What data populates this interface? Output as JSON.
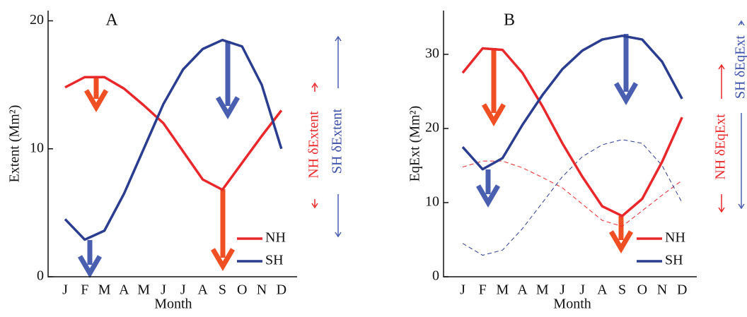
{
  "chart_data": [
    {
      "type": "line",
      "title": "A",
      "x_label": "Month",
      "y_label": "Extent (Mm²)",
      "categories": [
        "J",
        "F",
        "M",
        "A",
        "M",
        "J",
        "J",
        "A",
        "S",
        "O",
        "N",
        "D"
      ],
      "series": [
        {
          "name": "NH",
          "color": "#e8282b",
          "values": [
            14.8,
            15.6,
            15.6,
            14.7,
            13.4,
            12.0,
            9.8,
            7.6,
            6.8,
            8.9,
            11.0,
            13.0
          ]
        },
        {
          "name": "SH",
          "color": "#2b3d8f",
          "values": [
            4.5,
            2.9,
            3.6,
            6.5,
            10.0,
            13.5,
            16.2,
            17.8,
            18.5,
            18.0,
            15.0,
            10.0
          ]
        }
      ],
      "ylim": [
        0,
        20.8
      ],
      "yticks": [
        0,
        10,
        20
      ],
      "annotations": [
        "NH δExtent",
        "SH δExtent"
      ]
    },
    {
      "type": "line",
      "title": "B",
      "x_label": "Month",
      "y_label": "EqExt (Mm²)",
      "categories": [
        "J",
        "F",
        "M",
        "A",
        "M",
        "J",
        "J",
        "A",
        "S",
        "O",
        "N",
        "D"
      ],
      "series": [
        {
          "name": "NH",
          "color": "#e8282b",
          "values": [
            27.5,
            30.8,
            30.6,
            27.5,
            23.0,
            18.0,
            13.5,
            9.5,
            8.2,
            10.5,
            15.5,
            21.5
          ]
        },
        {
          "name": "SH",
          "color": "#2b3d8f",
          "values": [
            17.5,
            14.5,
            16.0,
            20.5,
            24.5,
            28.0,
            30.5,
            32.0,
            32.5,
            32.0,
            29.0,
            24.0
          ]
        }
      ],
      "ylim": [
        0,
        35.9
      ],
      "yticks": [
        0,
        10,
        20,
        30
      ],
      "annotations": [
        "NH δEqExt",
        "SH δEqExt"
      ]
    }
  ]
}
